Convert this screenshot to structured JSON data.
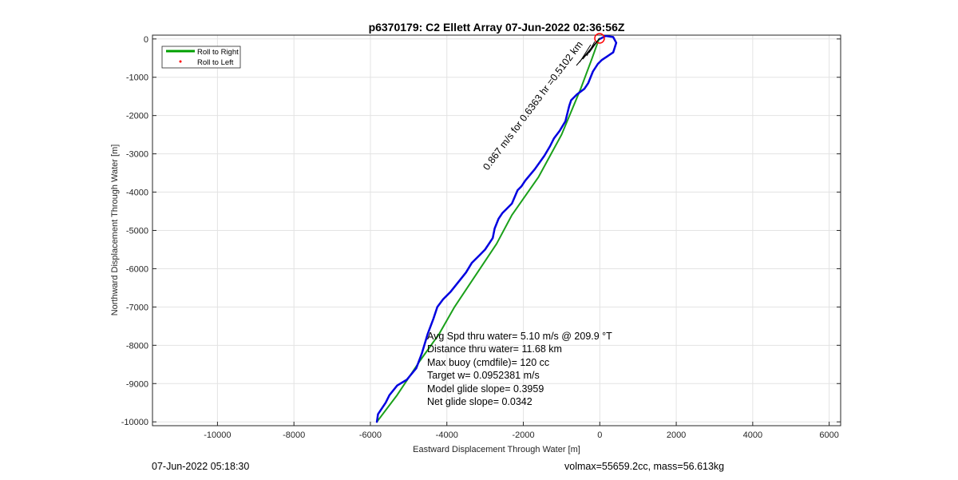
{
  "chart_data": {
    "type": "line",
    "title": "p6370179: C2 Ellett Array 07-Jun-2022 02:36:56Z",
    "xlabel": "Eastward Displacement Through Water [m]",
    "ylabel": "Northward Displacement Through Water [m]",
    "xlim": [
      -11700,
      6300
    ],
    "ylim": [
      -10100,
      100
    ],
    "xticks": [
      -10000,
      -8000,
      -6000,
      -4000,
      -2000,
      0,
      2000,
      4000,
      6000
    ],
    "yticks": [
      0,
      -1000,
      -2000,
      -3000,
      -4000,
      -5000,
      -6000,
      -7000,
      -8000,
      -9000,
      -10000
    ],
    "grid": true,
    "legend_placement": "top-left",
    "legend": [
      {
        "label": "Roll to Right",
        "color": "#00a000",
        "style": "line"
      },
      {
        "label": "Roll to Left",
        "color": "#ff0000",
        "style": "marker"
      }
    ],
    "series": [
      {
        "name": "Roll to Right",
        "color": "#1aa01a",
        "x": [
          -5830,
          -5300,
          -4700,
          -4200,
          -3800,
          -3400,
          -3000,
          -2700,
          -2300,
          -1600,
          -1000,
          -500,
          -200,
          -20
        ],
        "y": [
          -10000,
          -9300,
          -8400,
          -7700,
          -7000,
          -6400,
          -5800,
          -5350,
          -4600,
          -3600,
          -2500,
          -1300,
          -500,
          0
        ]
      },
      {
        "color": "#0000e0",
        "x": [
          -5830,
          -5800,
          -5600,
          -5500,
          -5300,
          -5050,
          -4800,
          -4650,
          -4500,
          -4350,
          -4250,
          -4100,
          -3900,
          -3700,
          -3500,
          -3350,
          -3150,
          -3000,
          -2900,
          -2800,
          -2750,
          -2650,
          -2550,
          -2450,
          -2300,
          -2150,
          -2050,
          -1950,
          -1700,
          -1450,
          -1300,
          -1200,
          -1050,
          -900,
          -800,
          -750,
          -600,
          -400,
          -300,
          -180,
          -50,
          50,
          200,
          350,
          430,
          350,
          150,
          0
        ],
        "y": [
          -10000,
          -9800,
          -9500,
          -9300,
          -9050,
          -8900,
          -8600,
          -8200,
          -7700,
          -7300,
          -7000,
          -6800,
          -6600,
          -6350,
          -6100,
          -5850,
          -5650,
          -5500,
          -5350,
          -5200,
          -4950,
          -4700,
          -4550,
          -4450,
          -4300,
          -3950,
          -3850,
          -3700,
          -3400,
          -3050,
          -2800,
          -2600,
          -2400,
          -2150,
          -1750,
          -1600,
          -1450,
          -1300,
          -1150,
          -850,
          -650,
          -550,
          -450,
          -350,
          -100,
          50,
          80,
          0
        ]
      }
    ],
    "annotations": [
      "Avg Spd thru water=  5.10 m/s @ 209.9 °T",
      "Distance thru water= 11.68 km",
      "Max buoy (cmdfile)= 120 cc",
      "Target w= 0.0952381 m/s",
      "Model glide slope= 0.3959",
      "Net glide slope= 0.0342"
    ],
    "rotated_annotation": "0.867 m/s for 0.6363 hr =0.5102 km"
  },
  "footer": {
    "left": "07-Jun-2022 05:18:30",
    "right": "volmax=55659.2cc, mass=56.613kg"
  }
}
